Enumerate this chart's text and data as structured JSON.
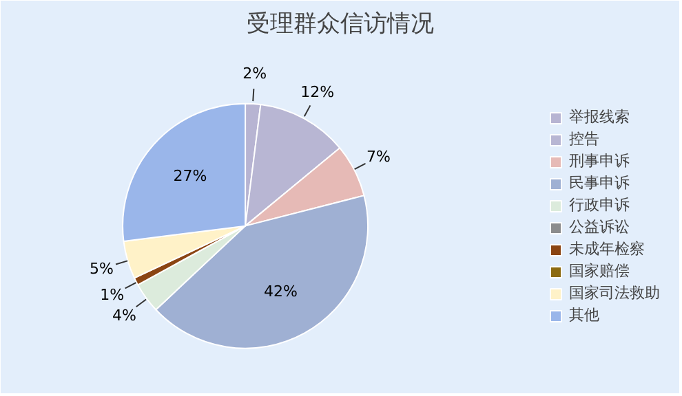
{
  "chart_data": {
    "type": "pie",
    "title": "受理群众信访情况",
    "categories": [
      "举报线索",
      "控告",
      "刑事申诉",
      "民事申诉",
      "行政申诉",
      "公益诉讼",
      "未成年检察",
      "国家赔偿",
      "国家司法救助",
      "其他"
    ],
    "values": [
      2,
      12,
      7,
      42,
      4,
      null,
      1,
      null,
      5,
      27
    ],
    "colors": [
      "#b7b4d2",
      "#b8b6d3",
      "#e6bab6",
      "#9fb0d3",
      "#dcebdc",
      "#8c8c8c",
      "#8b4513",
      "#8c6a10",
      "#fff2c8",
      "#9ab6ea"
    ],
    "value_labels": [
      "2%",
      "12%",
      "7%",
      "42%",
      "4%",
      null,
      "1%",
      null,
      "5%",
      "27%"
    ],
    "legend": "right"
  }
}
